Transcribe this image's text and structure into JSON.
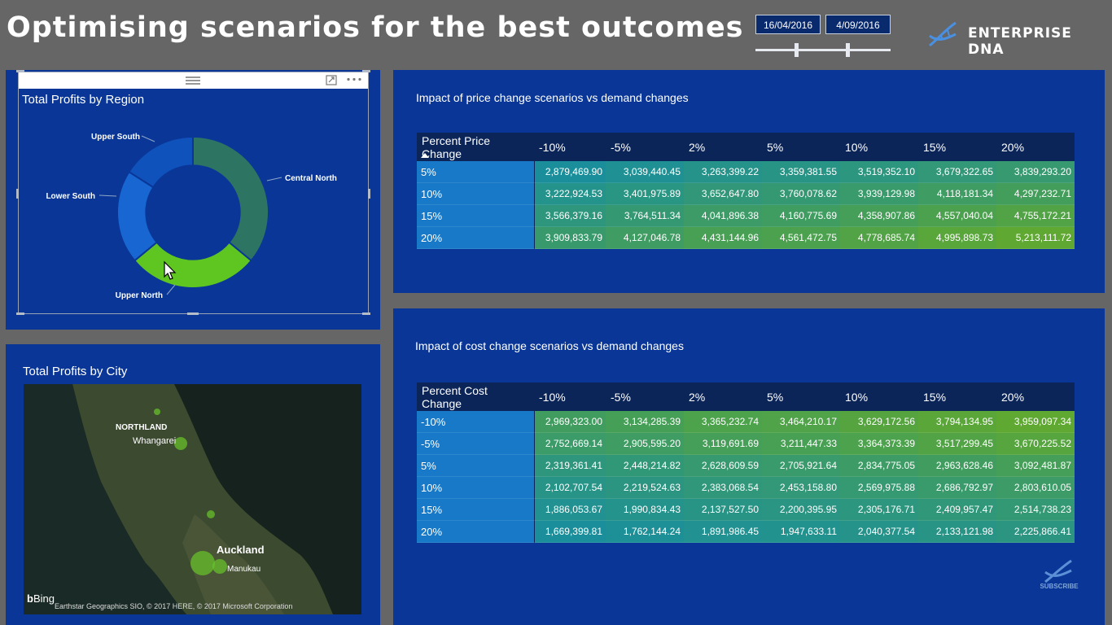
{
  "header": {
    "title": "Optimising scenarios for the best outcomes",
    "date_start": "16/04/2016",
    "date_end": "4/09/2016",
    "brand": "ENTERPRISE DNA"
  },
  "donut_visual": {
    "title": "Total Profits by Region",
    "chart_data": {
      "type": "pie",
      "title": "Total Profits by Region",
      "categories": [
        "Central North",
        "Upper North",
        "Lower South",
        "Upper South"
      ],
      "values": [
        36,
        28,
        20,
        16
      ],
      "colors": [
        "#2e7462",
        "#5fc621",
        "#1766d2",
        "#0f52bb"
      ],
      "hole": 0.62
    }
  },
  "map_visual": {
    "title": "Total Profits by City",
    "labels": {
      "region": "NORTHLAND",
      "city1": "Whangarei",
      "city2": "Auckland",
      "city3": "Manukau"
    },
    "attribution": "Earthstar Geographics SIO, © 2017 HERE, © 2017 Microsoft Corporation",
    "bing": "Bing"
  },
  "price_matrix": {
    "title": "Impact of price change scenarios vs demand changes",
    "row_header": "Percent Price Change",
    "columns": [
      "-10%",
      "-5%",
      "2%",
      "5%",
      "10%",
      "15%",
      "20%"
    ],
    "rows": [
      {
        "label": "5%",
        "values": [
          "2,879,469.90",
          "3,039,440.45",
          "3,263,399.22",
          "3,359,381.55",
          "3,519,352.10",
          "3,679,322.65",
          "3,839,293.20"
        ]
      },
      {
        "label": "10%",
        "values": [
          "3,222,924.53",
          "3,401,975.89",
          "3,652,647.80",
          "3,760,078.62",
          "3,939,129.98",
          "4,118,181.34",
          "4,297,232.71"
        ]
      },
      {
        "label": "15%",
        "values": [
          "3,566,379.16",
          "3,764,511.34",
          "4,041,896.38",
          "4,160,775.69",
          "4,358,907.86",
          "4,557,040.04",
          "4,755,172.21"
        ]
      },
      {
        "label": "20%",
        "values": [
          "3,909,833.79",
          "4,127,046.78",
          "4,431,144.96",
          "4,561,472.75",
          "4,778,685.74",
          "4,995,898.73",
          "5,213,111.72"
        ]
      }
    ]
  },
  "cost_matrix": {
    "title": "Impact of cost change scenarios vs demand changes",
    "row_header": "Percent Cost Change",
    "columns": [
      "-10%",
      "-5%",
      "2%",
      "5%",
      "10%",
      "15%",
      "20%"
    ],
    "rows": [
      {
        "label": "-10%",
        "values": [
          "2,969,323.00",
          "3,134,285.39",
          "3,365,232.74",
          "3,464,210.17",
          "3,629,172.56",
          "3,794,134.95",
          "3,959,097.34"
        ]
      },
      {
        "label": "-5%",
        "values": [
          "2,752,669.14",
          "2,905,595.20",
          "3,119,691.69",
          "3,211,447.33",
          "3,364,373.39",
          "3,517,299.45",
          "3,670,225.52"
        ]
      },
      {
        "label": "5%",
        "values": [
          "2,319,361.41",
          "2,448,214.82",
          "2,628,609.59",
          "2,705,921.64",
          "2,834,775.05",
          "2,963,628.46",
          "3,092,481.87"
        ]
      },
      {
        "label": "10%",
        "values": [
          "2,102,707.54",
          "2,219,524.63",
          "2,383,068.54",
          "2,453,158.80",
          "2,569,975.88",
          "2,686,792.97",
          "2,803,610.05"
        ]
      },
      {
        "label": "15%",
        "values": [
          "1,886,053.67",
          "1,990,834.43",
          "2,137,527.50",
          "2,200,395.95",
          "2,305,176.71",
          "2,409,957.47",
          "2,514,738.23"
        ]
      },
      {
        "label": "20%",
        "values": [
          "1,669,399.81",
          "1,762,144.24",
          "1,891,986.45",
          "1,947,633.11",
          "2,040,377.54",
          "2,133,121.98",
          "2,225,866.41"
        ]
      }
    ]
  },
  "subscribe_label": "SUBSCRIBE",
  "colors": {
    "panel": "#0a3797",
    "header_row": "#0b2559",
    "row_label": "#1779c8",
    "low": "#1a8f9b",
    "high": "#5fa831"
  }
}
